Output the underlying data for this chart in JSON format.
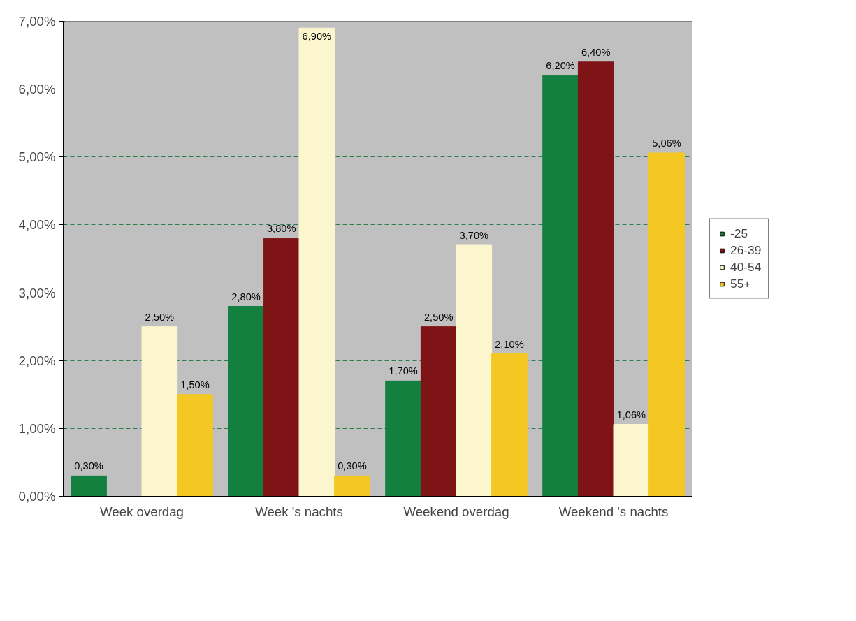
{
  "chart_data": {
    "type": "bar",
    "categories": [
      "Week overdag",
      "Week 's nachts",
      "Weekend overdag",
      "Weekend 's nachts"
    ],
    "series": [
      {
        "name": "-25",
        "color": "#138040",
        "values": [
          0.3,
          2.8,
          1.7,
          6.2
        ],
        "value_labels": [
          "0,30%",
          "2,80%",
          "1,70%",
          "6,20%"
        ]
      },
      {
        "name": "26-39",
        "color": "#7f1416",
        "values": [
          0,
          3.8,
          2.5,
          6.4
        ],
        "value_labels": [
          null,
          "3,80%",
          "2,50%",
          "6,40%"
        ]
      },
      {
        "name": "40-54",
        "color": "#fbf6cd",
        "values": [
          2.5,
          6.9,
          3.7,
          1.06
        ],
        "value_labels": [
          "2,50%",
          "6,90%",
          "3,70%",
          "1,06%"
        ]
      },
      {
        "name": "55+",
        "color": "#f5c723",
        "values": [
          1.5,
          0.3,
          2.1,
          5.06
        ],
        "value_labels": [
          "1,50%",
          "0,30%",
          "2,10%",
          "5,06%"
        ]
      }
    ],
    "ylim": [
      0,
      7
    ],
    "yticks": [
      {
        "value": 0,
        "label": "0,00%"
      },
      {
        "value": 1,
        "label": "1,00%"
      },
      {
        "value": 2,
        "label": "2,00%"
      },
      {
        "value": 3,
        "label": "3,00%"
      },
      {
        "value": 4,
        "label": "4,00%"
      },
      {
        "value": 5,
        "label": "5,00%"
      },
      {
        "value": 6,
        "label": "6,00%"
      },
      {
        "value": 7,
        "label": "7,00%"
      }
    ],
    "grid": "y",
    "line_style": "dashed",
    "legend": "right"
  }
}
